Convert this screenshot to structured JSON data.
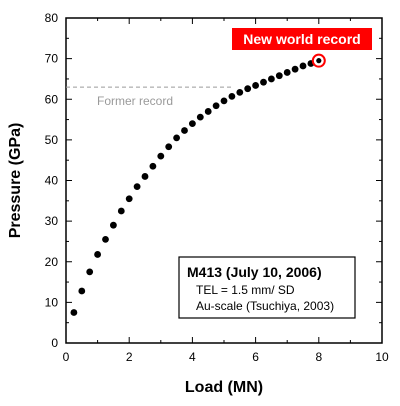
{
  "chart_data": {
    "type": "scatter",
    "xlabel": "Load (MN)",
    "ylabel": "Pressure (GPa)",
    "xlim": [
      0,
      10
    ],
    "ylim": [
      0,
      80
    ],
    "xticks": [
      "0",
      "2",
      "4",
      "6",
      "8",
      "10"
    ],
    "yticks": [
      "0",
      "10",
      "20",
      "30",
      "40",
      "50",
      "60",
      "70",
      "80"
    ],
    "grid": false,
    "series": [
      {
        "x": [
          0.25,
          0.5,
          0.75,
          1.0,
          1.25,
          1.5,
          1.75,
          2.0,
          2.25,
          2.5,
          2.75,
          3.0,
          3.25,
          3.5,
          3.75,
          4.0,
          4.25,
          4.5,
          4.75,
          5.0,
          5.25,
          5.5,
          5.75,
          6.0,
          6.25,
          6.5,
          6.75,
          7.0,
          7.25,
          7.5,
          7.75,
          8.0
        ],
        "y": [
          7.5,
          12.8,
          17.5,
          21.8,
          25.5,
          29.0,
          32.5,
          35.5,
          38.5,
          41.0,
          43.5,
          46.0,
          48.3,
          50.5,
          52.3,
          54.0,
          55.6,
          57.0,
          58.4,
          59.6,
          60.7,
          61.7,
          62.6,
          63.4,
          64.2,
          65.0,
          65.8,
          66.6,
          67.4,
          68.2,
          68.8,
          69.5
        ]
      }
    ],
    "former_record": {
      "value": 63,
      "label": "Former record"
    },
    "new_record": {
      "x": 8.0,
      "y": 69.5,
      "label": "New world record",
      "label_bg": "#ff0000"
    },
    "info_box": {
      "title": "M413 (July 10, 2006)",
      "lines": [
        "TEL = 1.5 mm/ SD",
        "Au-scale (Tsuchiya, 2003)"
      ]
    }
  },
  "colors": {
    "points": "#000000",
    "record": "#ff0000",
    "former_line": "#9a9a9a"
  }
}
